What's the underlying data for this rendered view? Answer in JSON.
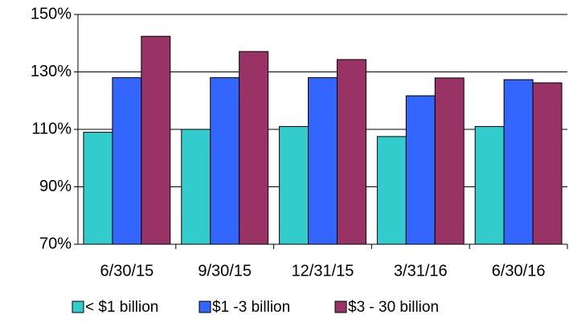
{
  "chart_data": {
    "type": "bar",
    "categories": [
      "6/30/15",
      "9/30/15",
      "12/31/15",
      "3/31/16",
      "6/30/16"
    ],
    "series": [
      {
        "name": "< $1 billion",
        "color": "#33cccc",
        "values": [
          109,
          110,
          111,
          107.5,
          111
        ]
      },
      {
        "name": "$1 -3 billion",
        "color": "#3366ff",
        "values": [
          128,
          128,
          128,
          121.7,
          127.3
        ]
      },
      {
        "name": "$3 - 30 billion",
        "color": "#993366",
        "values": [
          142.4,
          137.1,
          134.3,
          127.9,
          126.2
        ]
      }
    ],
    "ylim": [
      70,
      150
    ],
    "yticks": [
      {
        "value": 70,
        "label": "70%"
      },
      {
        "value": 90,
        "label": "90%"
      },
      {
        "value": 110,
        "label": "110%"
      },
      {
        "value": 130,
        "label": "130%"
      },
      {
        "value": 150,
        "label": "150%"
      }
    ],
    "grid": true,
    "legend": "bottom"
  }
}
